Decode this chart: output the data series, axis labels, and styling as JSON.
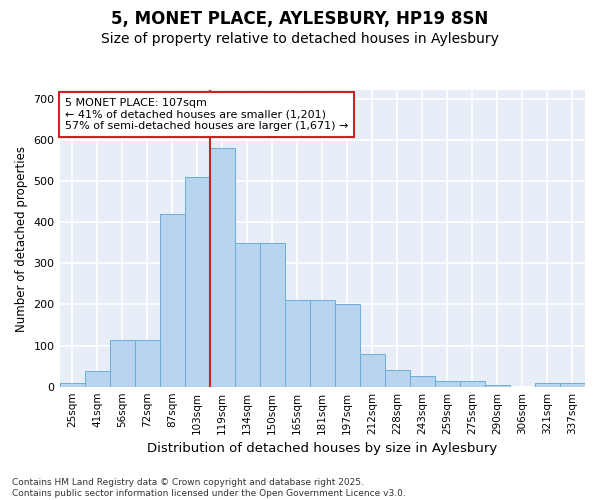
{
  "title_line1": "5, MONET PLACE, AYLESBURY, HP19 8SN",
  "title_line2": "Size of property relative to detached houses in Aylesbury",
  "xlabel": "Distribution of detached houses by size in Aylesbury",
  "ylabel": "Number of detached properties",
  "categories": [
    "25sqm",
    "41sqm",
    "56sqm",
    "72sqm",
    "87sqm",
    "103sqm",
    "119sqm",
    "134sqm",
    "150sqm",
    "165sqm",
    "181sqm",
    "197sqm",
    "212sqm",
    "228sqm",
    "243sqm",
    "259sqm",
    "275sqm",
    "290sqm",
    "306sqm",
    "321sqm",
    "337sqm"
  ],
  "values": [
    8,
    38,
    113,
    113,
    420,
    510,
    580,
    350,
    350,
    210,
    210,
    200,
    80,
    40,
    25,
    15,
    15,
    3,
    0,
    8,
    8
  ],
  "bar_color": "#b8d4ee",
  "bar_edge_color": "#6aaed6",
  "vline_color": "#cc2222",
  "annotation_text": "5 MONET PLACE: 107sqm\n← 41% of detached houses are smaller (1,201)\n57% of semi-detached houses are larger (1,671) →",
  "annotation_box_facecolor": "#ffffff",
  "annotation_box_edgecolor": "#cc2222",
  "ylim": [
    0,
    720
  ],
  "yticks": [
    0,
    100,
    200,
    300,
    400,
    500,
    600,
    700
  ],
  "footnote": "Contains HM Land Registry data © Crown copyright and database right 2025.\nContains public sector information licensed under the Open Government Licence v3.0.",
  "background_color": "#ffffff",
  "plot_bg_color": "#e8eef8",
  "grid_color": "#ffffff",
  "title_fontsize": 12,
  "subtitle_fontsize": 10,
  "tick_fontsize": 7.5,
  "ylabel_fontsize": 8.5,
  "xlabel_fontsize": 9.5,
  "annotation_fontsize": 8,
  "footnote_fontsize": 6.5
}
